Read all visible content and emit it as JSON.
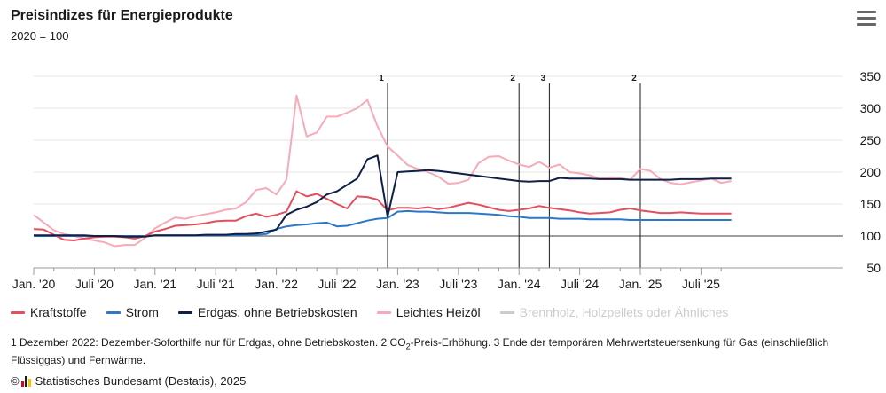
{
  "title": "Preisindizes für Energieprodukte",
  "subtitle": "2020 = 100",
  "menu_icon": "hamburger-menu-icon",
  "footnote": {
    "part1": "1 Dezember 2022: Dezember-Soforthilfe nur für Erdgas, ohne Betriebskosten. 2 CO",
    "sub": "2",
    "part2": "-Preis-Erhöhung. 3 Ende der temporären Mehrwertsteuersenkung für Gas (einschließlich Flüssiggas) und Fernwärme."
  },
  "source": {
    "copyright": "©",
    "text": "Statistisches Bundesamt (Destatis), 2025"
  },
  "chart_data": {
    "type": "line",
    "x_start": "Jan. '20",
    "x_end": "Sep. '25",
    "x_tick_labels": [
      "Jan. '20",
      "Juli '20",
      "Jan. '21",
      "Juli '21",
      "Jan. '22",
      "Juli '22",
      "Jan. '23",
      "Juli '23",
      "Jan. '24",
      "Juli '24",
      "Jan. '25",
      "Juli '25"
    ],
    "y_ticks": [
      50,
      100,
      150,
      200,
      250,
      300,
      350
    ],
    "ylim": [
      50,
      350
    ],
    "y_axis_side": "right",
    "grid": true,
    "legend_position": "bottom",
    "annotations": [
      {
        "label": "1",
        "x_month": 35
      },
      {
        "label": "2",
        "x_month": 48
      },
      {
        "label": "3",
        "x_month": 51
      },
      {
        "label": "2",
        "x_month": 60
      }
    ],
    "series": [
      {
        "name": "Kraftstoffe",
        "color": "#e0505f",
        "visible": true,
        "values": [
          111,
          110,
          102,
          94,
          93,
          96,
          98,
          99,
          99,
          98,
          96,
          100,
          107,
          111,
          116,
          117,
          118,
          120,
          123,
          124,
          124,
          131,
          135,
          130,
          133,
          138,
          170,
          162,
          166,
          158,
          150,
          143,
          162,
          161,
          157,
          140,
          144,
          144,
          143,
          145,
          142,
          144,
          148,
          152,
          149,
          145,
          141,
          139,
          141,
          143,
          147,
          144,
          142,
          140,
          137,
          135,
          136,
          137,
          141,
          143,
          140,
          138,
          136,
          136,
          137,
          136,
          135,
          135,
          135,
          135
        ]
      },
      {
        "name": "Strom",
        "color": "#2a78c7",
        "visible": true,
        "values": [
          100,
          100,
          100,
          100,
          100,
          100,
          100,
          100,
          100,
          100,
          100,
          100,
          101,
          101,
          101,
          101,
          101,
          101,
          101,
          101,
          101,
          102,
          102,
          103,
          111,
          115,
          117,
          118,
          120,
          121,
          115,
          116,
          120,
          124,
          127,
          128,
          138,
          139,
          138,
          138,
          137,
          136,
          136,
          136,
          135,
          134,
          133,
          131,
          130,
          128,
          128,
          128,
          127,
          127,
          127,
          126,
          126,
          126,
          126,
          125,
          125,
          125,
          125,
          125,
          125,
          125,
          125,
          125,
          125,
          125
        ]
      },
      {
        "name": "Erdgas, ohne Betriebskosten",
        "color": "#0f1f45",
        "visible": true,
        "values": [
          101,
          101,
          101,
          101,
          101,
          101,
          100,
          100,
          100,
          99,
          99,
          99,
          101,
          101,
          101,
          101,
          101,
          102,
          102,
          102,
          103,
          103,
          104,
          107,
          110,
          133,
          141,
          146,
          153,
          165,
          170,
          180,
          190,
          220,
          226,
          130,
          200,
          201,
          202,
          203,
          202,
          200,
          198,
          196,
          194,
          192,
          190,
          188,
          186,
          185,
          186,
          186,
          191,
          190,
          190,
          190,
          189,
          189,
          189,
          188,
          188,
          188,
          188,
          188,
          189,
          189,
          189,
          190,
          190,
          190
        ]
      },
      {
        "name": "Leichtes Heizöl",
        "color": "#f7aab8",
        "visible": true,
        "values": [
          133,
          121,
          109,
          103,
          100,
          96,
          93,
          90,
          84,
          86,
          86,
          97,
          112,
          121,
          129,
          127,
          131,
          134,
          137,
          141,
          143,
          153,
          172,
          175,
          165,
          188,
          320,
          256,
          262,
          287,
          287,
          293,
          300,
          313,
          272,
          240,
          226,
          211,
          205,
          200,
          193,
          182,
          183,
          188,
          214,
          224,
          225,
          218,
          212,
          208,
          216,
          207,
          212,
          200,
          198,
          195,
          190,
          192,
          191,
          188,
          205,
          202,
          189,
          183,
          181,
          184,
          187,
          190,
          183,
          186
        ]
      },
      {
        "name": "Brennholz, Holzpellets oder Ähnliches",
        "color": "#cccccc",
        "visible": false,
        "values": []
      }
    ]
  }
}
